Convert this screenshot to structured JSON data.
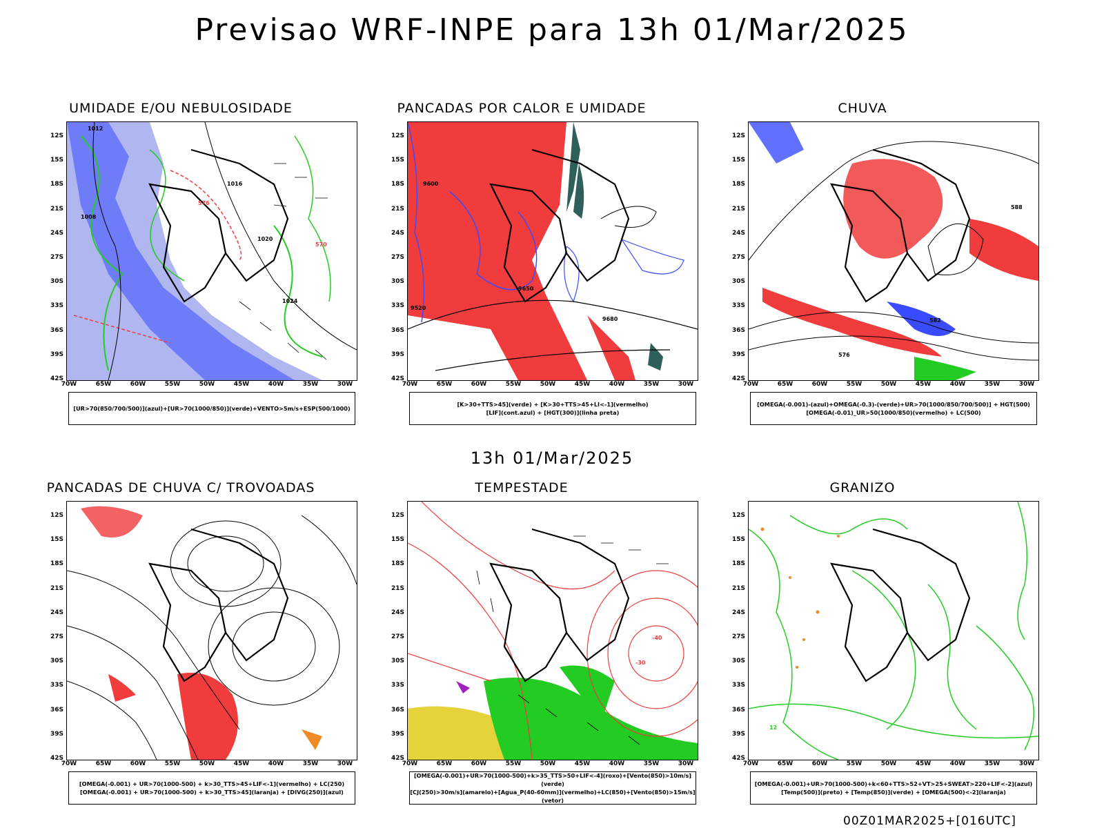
{
  "title": "Previsao WRF-INPE  para 13h 01/Mar/2025",
  "mid_time_label": "13h 01/Mar/2025",
  "run_label": "00Z01MAR2025+[016UTC]",
  "lat_ticks": [
    "12S",
    "15S",
    "18S",
    "21S",
    "24S",
    "27S",
    "30S",
    "33S",
    "36S",
    "39S",
    "42S"
  ],
  "lon_ticks": [
    "70W",
    "65W",
    "60W",
    "55W",
    "50W",
    "45W",
    "40W",
    "35W",
    "30W"
  ],
  "colors": {
    "blue": "#3a4cff",
    "lightblue": "#b0b6f0",
    "green": "#22cc22",
    "red": "#f03c3c",
    "teal": "#2f5f5a",
    "yellow": "#e6d23a",
    "orange": "#f08a24",
    "purple": "#a020c0"
  },
  "panels": [
    {
      "title": "UMIDADE E/OU NEBULOSIDADE",
      "legend": [
        "[UR>70(850/700/500)](azul)+[UR>70(1000/850)](verde)+VENTO>5m/s+ESP(500/1000)"
      ],
      "contour_labels": [
        "1012",
        "1016",
        "1020",
        "1024",
        "1008",
        "576",
        "570"
      ]
    },
    {
      "title": "PANCADAS POR CALOR E UMIDADE",
      "legend": [
        "[K>30+TTS>45](verde) + [K>30+TTS>45+LI<-1](vermelho)",
        "[LIF](cont.azul) + [HGT(300)](linha preta)"
      ],
      "contour_labels": [
        "9600",
        "9650",
        "9680",
        "9520"
      ]
    },
    {
      "title": "CHUVA",
      "legend": [
        "[OMEGA(-0.001)-(azul)+OMEGA(-0.3)-(verde)+UR>70(1000/850/700/500)] + HGT(500)",
        "[OMEGA(-0.01)_UR>50(1000/850)(vermelho) + LC(500)"
      ],
      "contour_labels": [
        "588",
        "582",
        "576"
      ]
    },
    {
      "title": "PANCADAS DE CHUVA C/ TROVOADAS",
      "legend": [
        "[OMEGA(-0.001) + UR>70(1000-500) + k>30_TTS>45+LIF<-1](vermelho) + LC(250)",
        "[OMEGA(-0.001) + UR>70(1000-500) + k>30_TTS>45](laranja) + [DIVG(250)](azul)"
      ],
      "contour_labels": []
    },
    {
      "title": "TEMPESTADE",
      "legend": [
        "[OMEGA(-0.001)+UR>70(1000-500)+k>35_TTS>50+LIF<-4](roxo)+[Vento(850)>10m/s](verde)",
        "[CJ(250)>30m/s](amarelo)+[Agua_P(40-60mm)](vermelho)+LC(850)+[Vento(850)>15m/s](vetor)"
      ],
      "contour_labels": [
        "-40",
        "-30"
      ]
    },
    {
      "title": "GRANIZO",
      "legend": [
        "[OMEGA(-0.001)+UR>70(1000-500)+k<60+TTS>52+VT>25+SWEAT>220+LIF<-2](azul)",
        "[Temp(500)](preto) + [Temp(850)](verde) + [OMEGA(500)<-2](laranja)"
      ],
      "contour_labels": [
        "12"
      ]
    }
  ]
}
